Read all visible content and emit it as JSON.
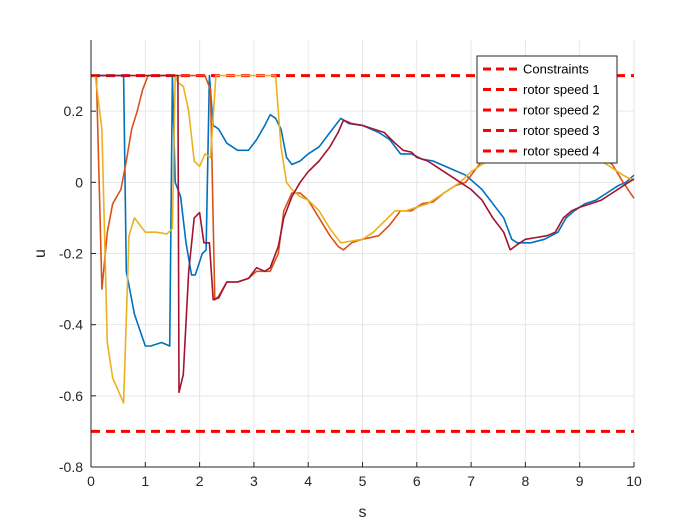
{
  "chart_data": {
    "type": "line",
    "title": "",
    "xlabel": "s",
    "ylabel": "u",
    "xlim": [
      0,
      10
    ],
    "ylim": [
      -0.8,
      0.4
    ],
    "xticks": [
      0,
      1,
      2,
      3,
      4,
      5,
      6,
      7,
      8,
      9,
      10
    ],
    "yticks": [
      -0.8,
      -0.6,
      -0.4,
      -0.2,
      0,
      0.2
    ],
    "ytick_labels": [
      "-0.8",
      "-0.6",
      "-0.4",
      "-0.2",
      "0",
      "0.2"
    ],
    "grid": true,
    "legend_position": "top-right",
    "legend": [
      "Constraints",
      "rotor speed 1",
      "rotor speed 2",
      "rotor speed 3",
      "rotor speed 4"
    ],
    "constraints": {
      "color": "#ff0000",
      "style": "dashed",
      "upper": 0.3,
      "lower": -0.7
    },
    "series": [
      {
        "color": "#0072bd",
        "points": [
          [
            0,
            0.3
          ],
          [
            0.6,
            0.3
          ],
          [
            0.65,
            -0.25
          ],
          [
            0.8,
            -0.37
          ],
          [
            1.0,
            -0.46
          ],
          [
            1.1,
            -0.46
          ],
          [
            1.3,
            -0.45
          ],
          [
            1.45,
            -0.46
          ],
          [
            1.5,
            0.3
          ],
          [
            1.55,
            0.0
          ],
          [
            1.65,
            -0.04
          ],
          [
            1.75,
            -0.17
          ],
          [
            1.85,
            -0.26
          ],
          [
            1.92,
            -0.26
          ],
          [
            2.05,
            -0.2
          ],
          [
            2.12,
            -0.19
          ],
          [
            2.18,
            0.3
          ],
          [
            2.25,
            0.16
          ],
          [
            2.35,
            0.15
          ],
          [
            2.5,
            0.11
          ],
          [
            2.7,
            0.09
          ],
          [
            2.9,
            0.09
          ],
          [
            3.05,
            0.12
          ],
          [
            3.2,
            0.16
          ],
          [
            3.3,
            0.19
          ],
          [
            3.4,
            0.18
          ],
          [
            3.5,
            0.15
          ],
          [
            3.6,
            0.07
          ],
          [
            3.7,
            0.05
          ],
          [
            3.85,
            0.06
          ],
          [
            4.0,
            0.08
          ],
          [
            4.2,
            0.1
          ],
          [
            4.4,
            0.14
          ],
          [
            4.6,
            0.18
          ],
          [
            4.75,
            0.165
          ],
          [
            5.0,
            0.16
          ],
          [
            5.3,
            0.14
          ],
          [
            5.5,
            0.12
          ],
          [
            5.7,
            0.08
          ],
          [
            5.9,
            0.08
          ],
          [
            6.1,
            0.065
          ],
          [
            6.3,
            0.06
          ],
          [
            6.6,
            0.04
          ],
          [
            6.9,
            0.02
          ],
          [
            7.2,
            -0.02
          ],
          [
            7.45,
            -0.07
          ],
          [
            7.6,
            -0.1
          ],
          [
            7.75,
            -0.16
          ],
          [
            7.85,
            -0.17
          ],
          [
            8.1,
            -0.17
          ],
          [
            8.35,
            -0.16
          ],
          [
            8.6,
            -0.14
          ],
          [
            8.75,
            -0.1
          ],
          [
            8.9,
            -0.08
          ],
          [
            9.1,
            -0.06
          ],
          [
            9.3,
            -0.05
          ],
          [
            9.5,
            -0.03
          ],
          [
            9.7,
            -0.01
          ],
          [
            9.85,
            0.0
          ],
          [
            10.0,
            0.02
          ]
        ]
      },
      {
        "color": "#d95319",
        "points": [
          [
            0,
            0.3
          ],
          [
            0.1,
            0.3
          ],
          [
            0.2,
            -0.3
          ],
          [
            0.3,
            -0.14
          ],
          [
            0.4,
            -0.06
          ],
          [
            0.55,
            -0.02
          ],
          [
            0.65,
            0.06
          ],
          [
            0.75,
            0.15
          ],
          [
            0.85,
            0.2
          ],
          [
            0.95,
            0.26
          ],
          [
            1.05,
            0.3
          ],
          [
            2.0,
            0.3
          ],
          [
            2.1,
            0.3
          ],
          [
            2.2,
            0.26
          ],
          [
            2.28,
            -0.33
          ],
          [
            2.35,
            -0.32
          ],
          [
            2.5,
            -0.28
          ],
          [
            2.7,
            -0.28
          ],
          [
            2.9,
            -0.27
          ],
          [
            3.05,
            -0.25
          ],
          [
            3.2,
            -0.25
          ],
          [
            3.3,
            -0.25
          ],
          [
            3.45,
            -0.2
          ],
          [
            3.55,
            -0.08
          ],
          [
            3.7,
            -0.03
          ],
          [
            3.85,
            -0.03
          ],
          [
            4.0,
            -0.05
          ],
          [
            4.2,
            -0.1
          ],
          [
            4.4,
            -0.15
          ],
          [
            4.55,
            -0.18
          ],
          [
            4.65,
            -0.19
          ],
          [
            4.8,
            -0.17
          ],
          [
            5.0,
            -0.16
          ],
          [
            5.3,
            -0.15
          ],
          [
            5.5,
            -0.12
          ],
          [
            5.7,
            -0.08
          ],
          [
            5.9,
            -0.08
          ],
          [
            6.1,
            -0.06
          ],
          [
            6.3,
            -0.055
          ],
          [
            6.5,
            -0.03
          ],
          [
            6.7,
            -0.01
          ],
          [
            6.9,
            0.0
          ],
          [
            7.1,
            0.04
          ],
          [
            7.3,
            0.08
          ],
          [
            7.45,
            0.11
          ],
          [
            7.6,
            0.14
          ],
          [
            7.8,
            0.15
          ],
          [
            8.0,
            0.15
          ],
          [
            8.2,
            0.15
          ],
          [
            8.4,
            0.14
          ],
          [
            8.6,
            0.13
          ],
          [
            8.8,
            0.12
          ],
          [
            9.0,
            0.1
          ],
          [
            9.2,
            0.08
          ],
          [
            9.4,
            0.07
          ],
          [
            9.6,
            0.05
          ],
          [
            9.8,
            0.0
          ],
          [
            10.0,
            -0.045
          ]
        ]
      },
      {
        "color": "#edb120",
        "points": [
          [
            0,
            0.3
          ],
          [
            0.08,
            0.3
          ],
          [
            0.2,
            0.15
          ],
          [
            0.3,
            -0.45
          ],
          [
            0.4,
            -0.55
          ],
          [
            0.6,
            -0.62
          ],
          [
            0.7,
            -0.15
          ],
          [
            0.8,
            -0.1
          ],
          [
            0.9,
            -0.12
          ],
          [
            1.0,
            -0.14
          ],
          [
            1.2,
            -0.14
          ],
          [
            1.4,
            -0.145
          ],
          [
            1.5,
            -0.13
          ],
          [
            1.55,
            0.3
          ],
          [
            1.6,
            0.28
          ],
          [
            1.7,
            0.27
          ],
          [
            1.8,
            0.2
          ],
          [
            1.9,
            0.06
          ],
          [
            2.0,
            0.045
          ],
          [
            2.1,
            0.08
          ],
          [
            2.2,
            0.07
          ],
          [
            2.3,
            0.3
          ],
          [
            3.4,
            0.3
          ],
          [
            3.5,
            0.1
          ],
          [
            3.6,
            0.0
          ],
          [
            3.7,
            -0.02
          ],
          [
            3.85,
            -0.04
          ],
          [
            4.0,
            -0.05
          ],
          [
            4.2,
            -0.08
          ],
          [
            4.4,
            -0.13
          ],
          [
            4.6,
            -0.17
          ],
          [
            4.8,
            -0.165
          ],
          [
            5.0,
            -0.16
          ],
          [
            5.2,
            -0.14
          ],
          [
            5.4,
            -0.11
          ],
          [
            5.6,
            -0.08
          ],
          [
            5.8,
            -0.08
          ],
          [
            6.0,
            -0.07
          ],
          [
            6.2,
            -0.06
          ],
          [
            6.4,
            -0.04
          ],
          [
            6.6,
            -0.02
          ],
          [
            6.8,
            0.0
          ],
          [
            7.0,
            0.03
          ],
          [
            7.2,
            0.05
          ],
          [
            7.4,
            0.07
          ],
          [
            7.6,
            0.11
          ],
          [
            7.8,
            0.14
          ],
          [
            8.0,
            0.15
          ],
          [
            8.2,
            0.15
          ],
          [
            8.4,
            0.14
          ],
          [
            8.6,
            0.13
          ],
          [
            8.8,
            0.12
          ],
          [
            9.0,
            0.1
          ],
          [
            9.2,
            0.08
          ],
          [
            9.4,
            0.06
          ],
          [
            9.6,
            0.04
          ],
          [
            9.8,
            0.02
          ],
          [
            10.0,
            0.005
          ]
        ]
      },
      {
        "color": "#a2142f",
        "points": [
          [
            0,
            0.3
          ],
          [
            1.5,
            0.3
          ],
          [
            1.6,
            0.3
          ],
          [
            1.62,
            -0.59
          ],
          [
            1.7,
            -0.54
          ],
          [
            1.8,
            -0.25
          ],
          [
            1.9,
            -0.1
          ],
          [
            2.0,
            -0.085
          ],
          [
            2.08,
            -0.17
          ],
          [
            2.18,
            -0.17
          ],
          [
            2.25,
            -0.33
          ],
          [
            2.35,
            -0.325
          ],
          [
            2.5,
            -0.28
          ],
          [
            2.7,
            -0.28
          ],
          [
            2.9,
            -0.27
          ],
          [
            3.05,
            -0.24
          ],
          [
            3.2,
            -0.25
          ],
          [
            3.3,
            -0.24
          ],
          [
            3.45,
            -0.18
          ],
          [
            3.55,
            -0.1
          ],
          [
            3.7,
            -0.04
          ],
          [
            3.85,
            0.0
          ],
          [
            4.0,
            0.03
          ],
          [
            4.2,
            0.06
          ],
          [
            4.4,
            0.1
          ],
          [
            4.55,
            0.14
          ],
          [
            4.65,
            0.175
          ],
          [
            4.8,
            0.165
          ],
          [
            5.0,
            0.16
          ],
          [
            5.2,
            0.15
          ],
          [
            5.4,
            0.14
          ],
          [
            5.6,
            0.11
          ],
          [
            5.75,
            0.09
          ],
          [
            5.9,
            0.085
          ],
          [
            6.0,
            0.07
          ],
          [
            6.2,
            0.06
          ],
          [
            6.4,
            0.04
          ],
          [
            6.6,
            0.02
          ],
          [
            6.8,
            0.0
          ],
          [
            7.0,
            -0.02
          ],
          [
            7.2,
            -0.05
          ],
          [
            7.4,
            -0.1
          ],
          [
            7.6,
            -0.14
          ],
          [
            7.72,
            -0.19
          ],
          [
            7.85,
            -0.175
          ],
          [
            8.0,
            -0.16
          ],
          [
            8.2,
            -0.155
          ],
          [
            8.4,
            -0.15
          ],
          [
            8.55,
            -0.14
          ],
          [
            8.7,
            -0.1
          ],
          [
            8.85,
            -0.08
          ],
          [
            9.0,
            -0.07
          ],
          [
            9.2,
            -0.06
          ],
          [
            9.4,
            -0.05
          ],
          [
            9.6,
            -0.03
          ],
          [
            9.8,
            -0.01
          ],
          [
            10.0,
            0.01
          ]
        ]
      }
    ]
  }
}
